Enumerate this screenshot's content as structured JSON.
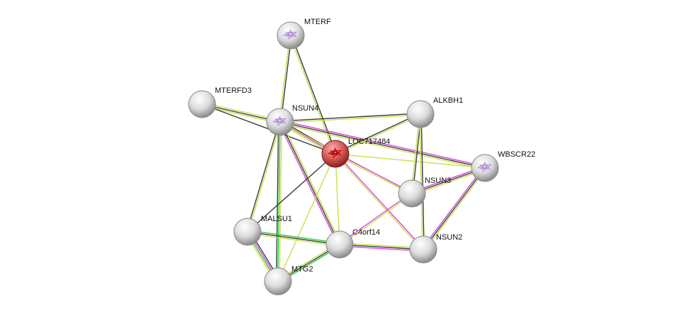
{
  "colors": {
    "black": "#3a3a3a",
    "yellow": "#c8e04a",
    "magenta": "#e040e0",
    "green": "#2ecc40",
    "query_node": "#d84c4c",
    "node": "#d8d8d8"
  },
  "nodes": [
    {
      "id": "MTERF",
      "label": "MTERF",
      "query": false,
      "structure": true
    },
    {
      "id": "MTERFD3",
      "label": "MTERFD3",
      "query": false,
      "structure": false
    },
    {
      "id": "NSUN4",
      "label": "NSUN4",
      "query": false,
      "structure": true
    },
    {
      "id": "ALKBH1",
      "label": "ALKBH1",
      "query": false,
      "structure": false
    },
    {
      "id": "LOC717484",
      "label": "LOC717484",
      "query": true,
      "structure": true
    },
    {
      "id": "WBSCR22",
      "label": "WBSCR22",
      "query": false,
      "structure": true
    },
    {
      "id": "NSUN3",
      "label": "NSUN3",
      "query": false,
      "structure": false
    },
    {
      "id": "MALSU1",
      "label": "MALSU1",
      "query": false,
      "structure": false
    },
    {
      "id": "C4orf14",
      "label": "C4orf14",
      "query": false,
      "structure": false
    },
    {
      "id": "NSUN2",
      "label": "NSUN2",
      "query": false,
      "structure": false
    },
    {
      "id": "MTG2",
      "label": "MTG2",
      "query": false,
      "structure": false
    }
  ],
  "edges": [
    {
      "a": "MTERF",
      "b": "NSUN4",
      "evidence": [
        "black",
        "yellow"
      ]
    },
    {
      "a": "MTERF",
      "b": "LOC717484",
      "evidence": [
        "black",
        "yellow"
      ]
    },
    {
      "a": "MTERFD3",
      "b": "NSUN4",
      "evidence": [
        "yellow",
        "black",
        "yellow"
      ]
    },
    {
      "a": "MTERFD3",
      "b": "LOC717484",
      "evidence": [
        "black"
      ]
    },
    {
      "a": "NSUN4",
      "b": "ALKBH1",
      "evidence": [
        "black",
        "yellow"
      ]
    },
    {
      "a": "NSUN4",
      "b": "LOC717484",
      "evidence": [
        "black",
        "magenta",
        "yellow"
      ]
    },
    {
      "a": "NSUN4",
      "b": "WBSCR22",
      "evidence": [
        "magenta",
        "black",
        "yellow"
      ]
    },
    {
      "a": "NSUN4",
      "b": "NSUN3",
      "evidence": [
        "yellow"
      ]
    },
    {
      "a": "NSUN4",
      "b": "MALSU1",
      "evidence": [
        "yellow",
        "black"
      ]
    },
    {
      "a": "NSUN4",
      "b": "MTG2",
      "evidence": [
        "yellow",
        "green",
        "black"
      ]
    },
    {
      "a": "NSUN4",
      "b": "C4orf14",
      "evidence": [
        "yellow",
        "black",
        "magenta"
      ]
    },
    {
      "a": "LOC717484",
      "b": "ALKBH1",
      "evidence": [
        "black",
        "yellow"
      ]
    },
    {
      "a": "LOC717484",
      "b": "WBSCR22",
      "evidence": [
        "yellow"
      ]
    },
    {
      "a": "LOC717484",
      "b": "NSUN3",
      "evidence": [
        "magenta",
        "yellow"
      ]
    },
    {
      "a": "LOC717484",
      "b": "NSUN2",
      "evidence": [
        "magenta",
        "yellow"
      ]
    },
    {
      "a": "LOC717484",
      "b": "C4orf14",
      "evidence": [
        "yellow"
      ]
    },
    {
      "a": "LOC717484",
      "b": "MALSU1",
      "evidence": [
        "black"
      ]
    },
    {
      "a": "LOC717484",
      "b": "MTG2",
      "evidence": [
        "yellow"
      ]
    },
    {
      "a": "ALKBH1",
      "b": "NSUN3",
      "evidence": [
        "black",
        "yellow"
      ]
    },
    {
      "a": "ALKBH1",
      "b": "NSUN2",
      "evidence": [
        "black",
        "yellow"
      ]
    },
    {
      "a": "WBSCR22",
      "b": "NSUN3",
      "evidence": [
        "yellow",
        "black",
        "magenta"
      ]
    },
    {
      "a": "WBSCR22",
      "b": "NSUN2",
      "evidence": [
        "yellow",
        "black",
        "magenta"
      ]
    },
    {
      "a": "NSUN3",
      "b": "C4orf14",
      "evidence": [
        "yellow",
        "magenta"
      ]
    },
    {
      "a": "C4orf14",
      "b": "NSUN2",
      "evidence": [
        "yellow",
        "black",
        "magenta"
      ]
    },
    {
      "a": "MALSU1",
      "b": "C4orf14",
      "evidence": [
        "green",
        "black",
        "yellow"
      ]
    },
    {
      "a": "MALSU1",
      "b": "MTG2",
      "evidence": [
        "black",
        "magenta",
        "green",
        "yellow"
      ]
    },
    {
      "a": "C4orf14",
      "b": "MTG2",
      "evidence": [
        "green",
        "black",
        "yellow"
      ]
    }
  ]
}
